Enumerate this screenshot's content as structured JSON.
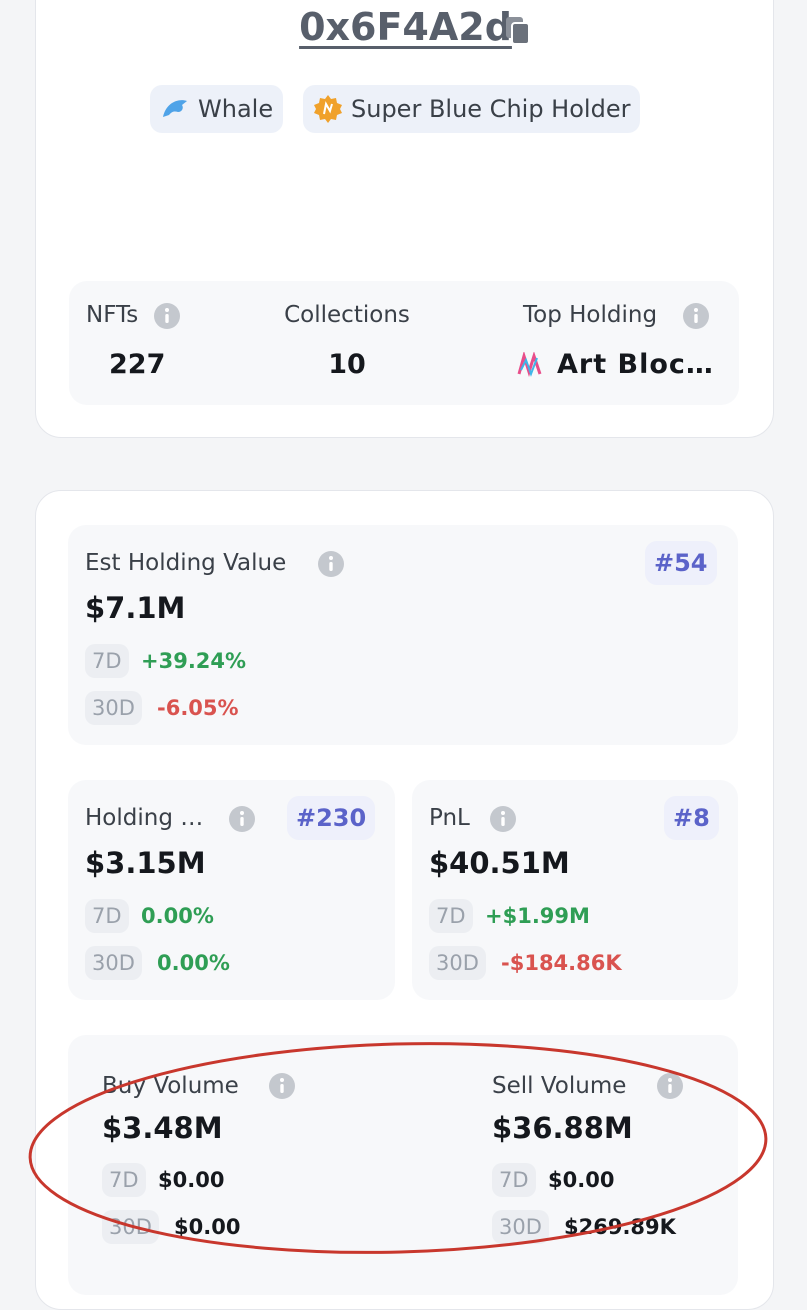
{
  "header": {
    "address": "0x6F4A2d",
    "badges": [
      "Whale",
      "Super Blue Chip Holder"
    ]
  },
  "summary": [
    {
      "label": "NFTs",
      "value": "227"
    },
    {
      "label": "Collections",
      "value": "10"
    },
    {
      "label": "Top Holding",
      "value": "Art Bloc…"
    }
  ],
  "cards": [
    {
      "label": "Est Holding Value",
      "rank": "#54",
      "value": "$7.1M",
      "changes": [
        {
          "period": "7D",
          "value": "+39.24%"
        },
        {
          "period": "30D",
          "value": "-6.05%"
        }
      ]
    },
    {
      "label": "Holding …",
      "rank": "#230",
      "value": "$3.15M",
      "changes": [
        {
          "period": "7D",
          "value": "0.00%"
        },
        {
          "period": "30D",
          "value": "0.00%"
        }
      ]
    },
    {
      "label": "PnL",
      "rank": "#8",
      "value": "$40.51M",
      "changes": [
        {
          "period": "7D",
          "value": "+$1.99M"
        },
        {
          "period": "30D",
          "value": "-$184.86K"
        }
      ]
    }
  ],
  "volumes": [
    {
      "label": "Buy Volume",
      "value": "$3.48M",
      "changes": [
        {
          "period": "7D",
          "value": "$0.00"
        },
        {
          "period": "30D",
          "value": "$0.00"
        }
      ]
    },
    {
      "label": "Sell Volume",
      "value": "$36.88M",
      "changes": [
        {
          "period": "7D",
          "value": "$0.00"
        },
        {
          "period": "30D",
          "value": "$269.89K"
        }
      ]
    }
  ]
}
